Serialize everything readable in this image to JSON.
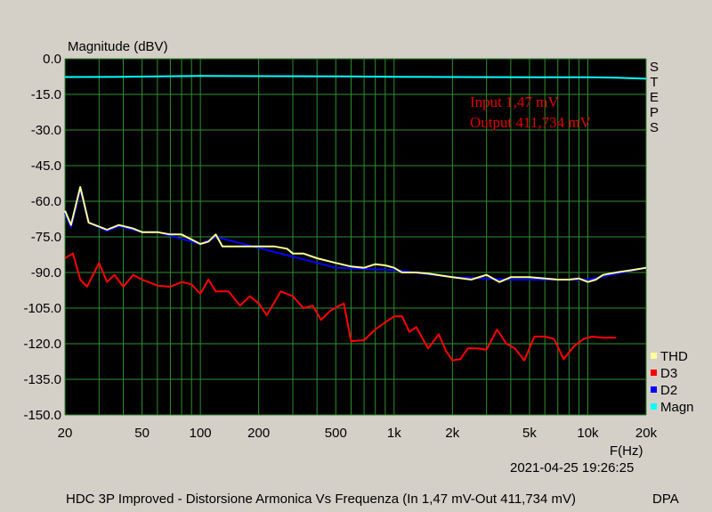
{
  "chart_data": {
    "type": "line",
    "title": "Magnitude (dBV)",
    "xlabel": "F(Hz)",
    "ylabel": "Magnitude (dBV)",
    "x_scale": "log",
    "xlim": [
      20,
      20000
    ],
    "ylim": [
      -150,
      0
    ],
    "grid": true,
    "legend_position": "bottom-right",
    "x_ticks": [
      {
        "v": 20,
        "label": "20"
      },
      {
        "v": 50,
        "label": "50"
      },
      {
        "v": 100,
        "label": "100"
      },
      {
        "v": 200,
        "label": "200"
      },
      {
        "v": 500,
        "label": "500"
      },
      {
        "v": 1000,
        "label": "1k"
      },
      {
        "v": 2000,
        "label": "2k"
      },
      {
        "v": 5000,
        "label": "5k"
      },
      {
        "v": 10000,
        "label": "10k"
      },
      {
        "v": 20000,
        "label": "20k"
      }
    ],
    "y_ticks": [
      {
        "v": 0,
        "label": "0.0"
      },
      {
        "v": -15,
        "label": "-15.0"
      },
      {
        "v": -30,
        "label": "-30.0"
      },
      {
        "v": -45,
        "label": "-45.0"
      },
      {
        "v": -60,
        "label": "-60.0"
      },
      {
        "v": -75,
        "label": "-75.0"
      },
      {
        "v": -90,
        "label": "-90.0"
      },
      {
        "v": -105,
        "label": "-105.0"
      },
      {
        "v": -120,
        "label": "-120.0"
      },
      {
        "v": -135,
        "label": "-135.0"
      },
      {
        "v": -150,
        "label": "-150.0"
      }
    ],
    "series": [
      {
        "name": "Magn",
        "color": "#00ffff",
        "x": [
          20,
          40,
          100,
          200,
          500,
          1000,
          2000,
          5000,
          10000,
          14000,
          20000
        ],
        "y": [
          -7.7,
          -7.6,
          -7.2,
          -7.3,
          -7.4,
          -7.6,
          -7.7,
          -7.8,
          -7.8,
          -8.0,
          -8.4
        ]
      },
      {
        "name": "D2",
        "color": "#0000ff",
        "x": [
          20,
          21.5,
          24,
          26.5,
          33,
          38,
          50,
          60,
          100,
          120,
          500,
          1000,
          2000,
          4000,
          10000,
          20000
        ],
        "y": [
          -65,
          -71,
          -55,
          -69,
          -72.5,
          -70.5,
          -73,
          -73,
          -78,
          -75,
          -88,
          -89,
          -92,
          -93,
          -93,
          -88
        ]
      },
      {
        "name": "D3",
        "color": "#ff0000",
        "x": [
          20,
          22,
          24,
          26,
          30,
          33,
          36,
          40,
          45,
          50,
          60,
          70,
          80,
          90,
          100,
          110,
          120,
          140,
          160,
          180,
          200,
          220,
          260,
          300,
          340,
          380,
          420,
          470,
          550,
          600,
          700,
          800,
          900,
          1000,
          1100,
          1200,
          1300,
          1500,
          1700,
          1850,
          2000,
          2200,
          2400,
          2700,
          3000,
          3400,
          3800,
          4200,
          4700,
          5300,
          6000,
          6700,
          7500,
          8500,
          9500,
          10500,
          12000,
          14000
        ],
        "y": [
          -84,
          -82,
          -93,
          -96,
          -86,
          -94,
          -91,
          -96,
          -91,
          -93,
          -95.5,
          -96,
          -94,
          -95,
          -99,
          -93,
          -98,
          -98,
          -104,
          -100,
          -103,
          -108,
          -98,
          -100,
          -105,
          -104,
          -110,
          -106,
          -103,
          -119,
          -118.5,
          -114,
          -111,
          -108.5,
          -108.5,
          -115,
          -113,
          -122,
          -116,
          -123,
          -127,
          -126.5,
          -122,
          -122,
          -122.5,
          -114,
          -120,
          -122,
          -127,
          -117,
          -117,
          -118,
          -126.5,
          -121,
          -118,
          -117,
          -117.5,
          -117.5
        ]
      },
      {
        "name": "THD",
        "color": "#ffff99",
        "x": [
          20,
          21.5,
          24,
          26.5,
          33,
          38,
          45,
          50,
          60,
          70,
          80,
          100,
          110,
          120,
          130,
          160,
          200,
          240,
          280,
          300,
          340,
          400,
          500,
          600,
          700,
          800,
          900,
          1000,
          1100,
          1300,
          1500,
          2000,
          2500,
          3000,
          3500,
          4000,
          5000,
          6000,
          7000,
          8000,
          9000,
          10000,
          11000,
          12000,
          14000,
          17000,
          20000
        ],
        "y": [
          -64,
          -70,
          -54,
          -69,
          -72,
          -70,
          -71.5,
          -73,
          -73,
          -74,
          -74,
          -78,
          -77,
          -74,
          -79,
          -79,
          -79,
          -79,
          -80,
          -82,
          -82,
          -84,
          -86,
          -87.5,
          -88,
          -86.5,
          -87,
          -88,
          -90,
          -90,
          -90.5,
          -92,
          -93,
          -91,
          -94,
          -92,
          -92,
          -92.5,
          -93,
          -93,
          -92.5,
          -94,
          -93,
          -91,
          -90,
          -89,
          -88
        ]
      }
    ]
  },
  "labels": {
    "steps": "STEPS",
    "annot_input": "Input 1,47 mV",
    "annot_output": "Output 411,734 mV",
    "timestamp": "2021-04-25 19:26:25",
    "footer": "HDC 3P Improved - Distorsione Armonica Vs Frequenza (In 1,47 mV-Out 411,734 mV)",
    "brand": "DPA"
  },
  "legend": [
    {
      "label": "THD",
      "color": "#ffff99"
    },
    {
      "label": "D3",
      "color": "#ff0000"
    },
    {
      "label": "D2",
      "color": "#0000ff"
    },
    {
      "label": "Magn",
      "color": "#00ffff"
    }
  ],
  "colors": {
    "plot_bg": "#000000",
    "grid": "#2f8f2f",
    "window_bg": "#d4d0c8"
  }
}
